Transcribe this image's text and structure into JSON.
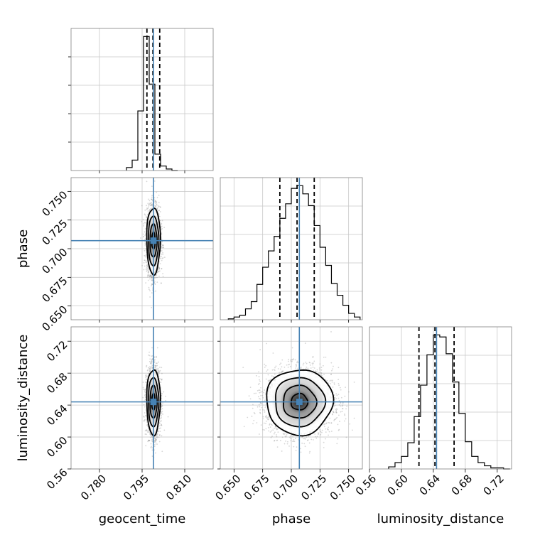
{
  "chart_data": {
    "type": "corner",
    "parameters": [
      "geocent_time",
      "phase",
      "luminosity_distance"
    ],
    "ranges": {
      "geocent_time": [
        0.77,
        0.82
      ],
      "phase": [
        0.638,
        0.762
      ],
      "luminosity_distance": [
        0.56,
        0.738
      ]
    },
    "ticks": {
      "geocent_time": [
        "0.780",
        "0.795",
        "0.810"
      ],
      "phase": [
        "0.650",
        "0.675",
        "0.700",
        "0.725",
        "0.750"
      ],
      "luminosity_distance": [
        "0.56",
        "0.60",
        "0.64",
        "0.68",
        "0.72"
      ]
    },
    "truths": {
      "geocent_time": 0.799,
      "phase": 0.707,
      "luminosity_distance": 0.644
    },
    "quantiles": {
      "geocent_time": [
        0.7967,
        0.7988,
        0.8012
      ],
      "phase": [
        0.69,
        0.705,
        0.72
      ],
      "luminosity_distance": [
        0.622,
        0.642,
        0.666
      ]
    },
    "histograms": {
      "geocent_time": {
        "bin_edges": [
          0.7895,
          0.7915,
          0.7935,
          0.7955,
          0.7975,
          0.7995,
          0.8015,
          0.8035,
          0.8055,
          0.8075
        ],
        "counts": [
          2,
          7,
          40,
          90,
          58,
          11,
          3,
          1,
          0
        ]
      },
      "phase": {
        "bin_edges": [
          0.645,
          0.65,
          0.655,
          0.66,
          0.665,
          0.67,
          0.675,
          0.68,
          0.685,
          0.69,
          0.695,
          0.7,
          0.705,
          0.71,
          0.715,
          0.72,
          0.725,
          0.73,
          0.735,
          0.74,
          0.745,
          0.75,
          0.755,
          0.76
        ],
        "counts": [
          1,
          3,
          5,
          12,
          20,
          39,
          58,
          76,
          92,
          112,
          128,
          145,
          148,
          139,
          126,
          104,
          80,
          60,
          40,
          27,
          16,
          7,
          3
        ]
      },
      "luminosity_distance": {
        "bin_edges": [
          0.584,
          0.592,
          0.6,
          0.608,
          0.616,
          0.624,
          0.632,
          0.64,
          0.648,
          0.656,
          0.664,
          0.672,
          0.68,
          0.688,
          0.696,
          0.704,
          0.712,
          0.72,
          0.728,
          0.736
        ],
        "counts": [
          2,
          6,
          12,
          25,
          50,
          80,
          109,
          128,
          126,
          110,
          83,
          53,
          26,
          12,
          6,
          3,
          1,
          1,
          0
        ]
      }
    },
    "contours_2d": {
      "phase_vs_geocent_time": {
        "center": [
          0.799,
          0.707
        ],
        "sigma": [
          0.0012,
          0.0145
        ]
      },
      "luminosity_distance_vs_geocent_time": {
        "center": [
          0.799,
          0.644
        ],
        "sigma": [
          0.0012,
          0.0205
        ]
      },
      "luminosity_distance_vs_phase": {
        "center": [
          0.707,
          0.644
        ],
        "sigma": [
          0.0145,
          0.0205
        ]
      }
    }
  }
}
